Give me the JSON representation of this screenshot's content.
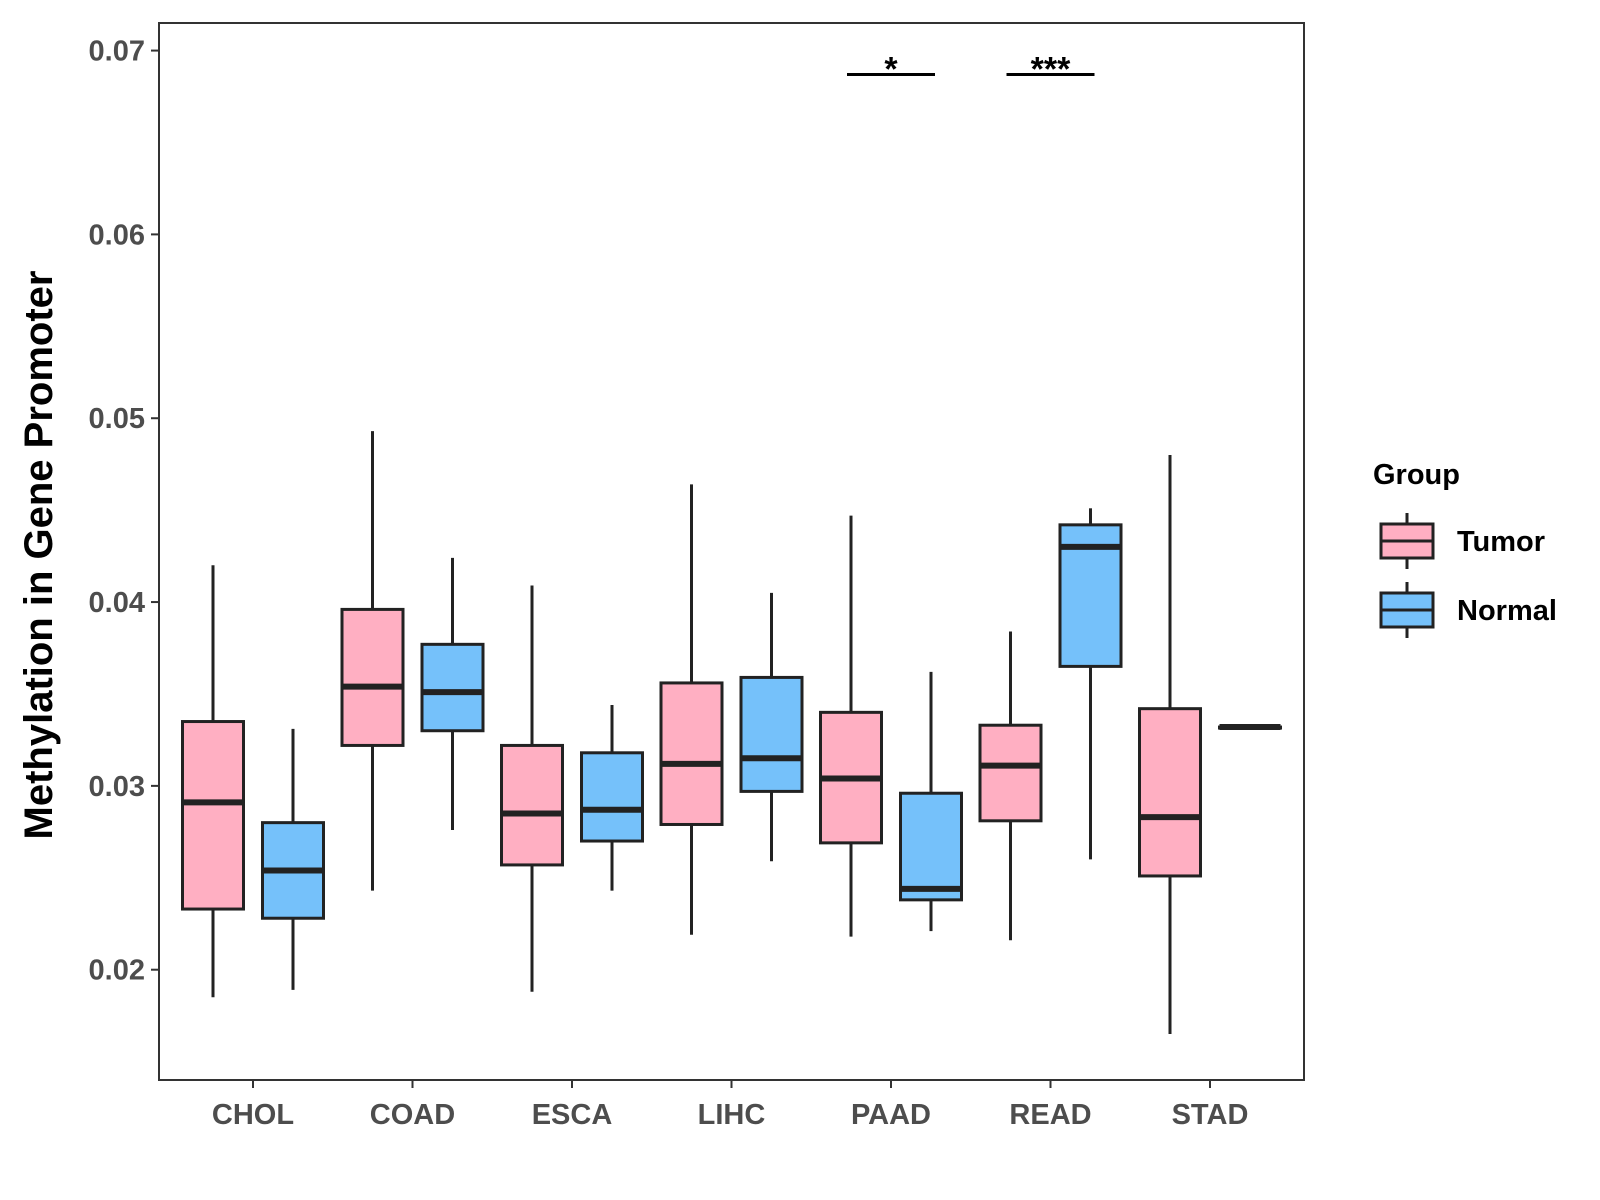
{
  "chart_data": {
    "type": "boxplot",
    "title": "",
    "xlabel": "",
    "ylabel": "Methylation in Gene Promoter",
    "ylim": [
      0.014,
      0.0715
    ],
    "yticks": [
      0.02,
      0.03,
      0.04,
      0.05,
      0.06,
      0.07
    ],
    "ytick_labels": [
      "0.02",
      "0.03",
      "0.04",
      "0.05",
      "0.06",
      "0.07"
    ],
    "categories": [
      "CHOL",
      "COAD",
      "ESCA",
      "LIHC",
      "PAAD",
      "READ",
      "STAD"
    ],
    "legend": {
      "title": "Group",
      "position": "right",
      "entries": [
        {
          "name": "Tumor",
          "color": "#FFAFC2"
        },
        {
          "name": "Normal",
          "color": "#75C1FA"
        }
      ]
    },
    "series": [
      {
        "name": "Tumor",
        "color": "#FFAFC2",
        "boxes": [
          {
            "min": 0.0185,
            "q1": 0.0233,
            "median": 0.0291,
            "q3": 0.0335,
            "max": 0.042
          },
          {
            "min": 0.0243,
            "q1": 0.0322,
            "median": 0.0354,
            "q3": 0.0396,
            "max": 0.0493
          },
          {
            "min": 0.0188,
            "q1": 0.0257,
            "median": 0.0285,
            "q3": 0.0322,
            "max": 0.0409
          },
          {
            "min": 0.0219,
            "q1": 0.0279,
            "median": 0.0312,
            "q3": 0.0356,
            "max": 0.0464
          },
          {
            "min": 0.0218,
            "q1": 0.0269,
            "median": 0.0304,
            "q3": 0.034,
            "max": 0.0447
          },
          {
            "min": 0.0216,
            "q1": 0.0281,
            "median": 0.0311,
            "q3": 0.0333,
            "max": 0.0384
          },
          {
            "min": 0.0165,
            "q1": 0.0251,
            "median": 0.0283,
            "q3": 0.0342,
            "max": 0.048
          }
        ]
      },
      {
        "name": "Normal",
        "color": "#75C1FA",
        "boxes": [
          {
            "min": 0.0189,
            "q1": 0.0228,
            "median": 0.0254,
            "q3": 0.028,
            "max": 0.0331
          },
          {
            "min": 0.0276,
            "q1": 0.033,
            "median": 0.0351,
            "q3": 0.0377,
            "max": 0.0424
          },
          {
            "min": 0.0243,
            "q1": 0.027,
            "median": 0.0287,
            "q3": 0.0318,
            "max": 0.0344
          },
          {
            "min": 0.0259,
            "q1": 0.0297,
            "median": 0.0315,
            "q3": 0.0359,
            "max": 0.0405
          },
          {
            "min": 0.0221,
            "q1": 0.0238,
            "median": 0.0244,
            "q3": 0.0296,
            "max": 0.0362
          },
          {
            "min": 0.026,
            "q1": 0.0365,
            "median": 0.043,
            "q3": 0.0442,
            "max": 0.0451
          },
          {
            "min": 0.0332,
            "q1": 0.0332,
            "median": 0.0332,
            "q3": 0.0332,
            "max": 0.0332
          }
        ]
      }
    ],
    "significance": [
      {
        "category": "PAAD",
        "label": "*",
        "y": 0.0687
      },
      {
        "category": "READ",
        "label": "***",
        "y": 0.0687
      }
    ]
  }
}
